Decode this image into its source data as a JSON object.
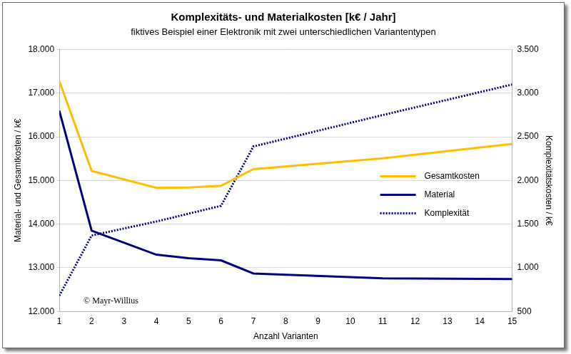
{
  "chart_data": {
    "type": "line",
    "title": "Komplexitäts- und Materialkosten [k€ / Jahr]",
    "subtitle": "fiktives Beispiel einer Elektronik mit zwei unterschiedlichen Variantentypen",
    "x_label": "Anzahl Varianten",
    "y_label": "Material- und Gesamtkosten / k€",
    "y2_label": "Komplexitätskosten / k€",
    "annotation": "© Mayr-Willius",
    "x": [
      1,
      2,
      4,
      5,
      6,
      7,
      11,
      15
    ],
    "series": [
      {
        "name": "Gesamtkosten",
        "color": "#ffbf00",
        "line_style": "solid",
        "marker": "none",
        "values": [
          17280,
          15220,
          14830,
          14840,
          14880,
          15260,
          15510,
          15840
        ]
      },
      {
        "name": "Material",
        "color": "#000080",
        "line_style": "solid",
        "marker": "none",
        "values": [
          16600,
          13850,
          13300,
          13220,
          13170,
          12870,
          12760,
          12740
        ]
      },
      {
        "name": "Komplexität",
        "color": "#000080",
        "line_style": "dotted",
        "marker": "none",
        "axis": "y2",
        "values": [
          680,
          1370,
          1530,
          1620,
          1710,
          2390,
          2750,
          3100
        ]
      }
    ],
    "xlim": [
      1,
      15
    ],
    "xticks": [
      1,
      2,
      3,
      4,
      5,
      6,
      7,
      8,
      9,
      10,
      11,
      12,
      13,
      14,
      15
    ],
    "ylim": [
      12000,
      18000
    ],
    "yticks": [
      {
        "value": 12000,
        "label": "12.000"
      },
      {
        "value": 13000,
        "label": "13.000"
      },
      {
        "value": 14000,
        "label": "14.000"
      },
      {
        "value": 15000,
        "label": "15.000"
      },
      {
        "value": 16000,
        "label": "16.000"
      },
      {
        "value": 17000,
        "label": "17.000"
      },
      {
        "value": 18000,
        "label": "18.000"
      }
    ],
    "y2lim": [
      500,
      3500
    ],
    "y2ticks": [
      500,
      {
        "value": 1000,
        "label": "1.000"
      },
      {
        "value": 1500,
        "label": "1.500"
      },
      {
        "value": 2000,
        "label": "2.000"
      },
      {
        "value": 2500,
        "label": "2.500"
      },
      {
        "value": 3000,
        "label": "3.000"
      },
      {
        "value": 3500,
        "label": "3.500"
      }
    ],
    "grid": true,
    "legend": "right"
  }
}
